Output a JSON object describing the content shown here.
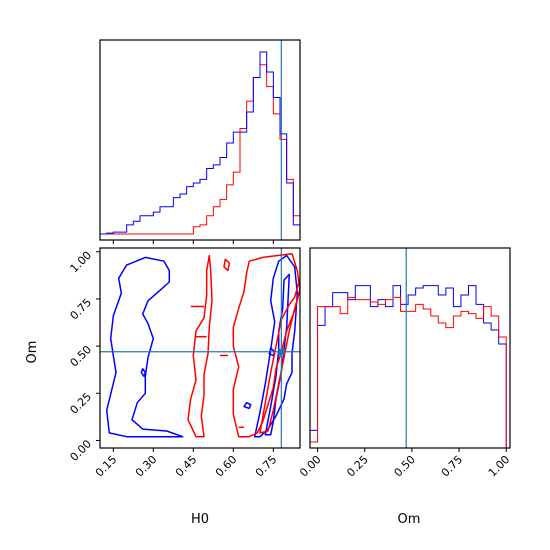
{
  "colors": {
    "series_a": "#0000ff",
    "series_b": "#ff0000",
    "truth": "#1f77b4"
  },
  "chart_data": {
    "type": "corner",
    "parameters": [
      "H0",
      "Om"
    ],
    "truth": {
      "H0": 0.78,
      "Om": 0.47
    },
    "axes": {
      "H0": {
        "label": "H0",
        "range": [
          0.1,
          0.85
        ],
        "ticks": [
          "0.15",
          "0.30",
          "0.45",
          "0.60",
          "0.75"
        ]
      },
      "Om": {
        "label": "Om",
        "range": [
          -0.04,
          1.02
        ],
        "ticks": [
          "0.00",
          "0.25",
          "0.50",
          "0.75",
          "1.00"
        ]
      }
    },
    "hist_h0": {
      "edges": [
        0.1,
        0.125,
        0.15,
        0.175,
        0.2,
        0.225,
        0.25,
        0.275,
        0.3,
        0.325,
        0.35,
        0.375,
        0.4,
        0.425,
        0.45,
        0.475,
        0.5,
        0.525,
        0.55,
        0.575,
        0.6,
        0.625,
        0.65,
        0.675,
        0.7,
        0.725,
        0.75,
        0.775,
        0.8,
        0.825,
        0.85
      ],
      "series_a": [
        0.0,
        0.005,
        0.01,
        0.01,
        0.05,
        0.07,
        0.1,
        0.1,
        0.12,
        0.15,
        0.15,
        0.2,
        0.22,
        0.26,
        0.28,
        0.3,
        0.36,
        0.38,
        0.42,
        0.5,
        0.56,
        0.56,
        0.67,
        0.86,
        1.0,
        0.89,
        0.75,
        0.55,
        0.28,
        0.05
      ],
      "series_b": [
        0,
        0,
        0,
        0,
        0,
        0,
        0,
        0,
        0,
        0,
        0,
        0,
        0,
        0,
        0.04,
        0.05,
        0.1,
        0.15,
        0.19,
        0.27,
        0.34,
        0.58,
        0.73,
        0.86,
        0.93,
        0.81,
        0.66,
        0.52,
        0.3,
        0.1
      ]
    },
    "hist_om": {
      "edges": [
        -0.04,
        0.0,
        0.04,
        0.08,
        0.12,
        0.16,
        0.2,
        0.24,
        0.28,
        0.32,
        0.36,
        0.4,
        0.44,
        0.48,
        0.52,
        0.56,
        0.6,
        0.64,
        0.68,
        0.72,
        0.76,
        0.8,
        0.84,
        0.88,
        0.92,
        0.96,
        1.0
      ],
      "series_a": [
        0.05,
        0.5,
        0.58,
        0.64,
        0.64,
        0.61,
        0.67,
        0.67,
        0.58,
        0.61,
        0.58,
        0.67,
        0.59,
        0.63,
        0.66,
        0.67,
        0.67,
        0.63,
        0.66,
        0.58,
        0.63,
        0.67,
        0.59,
        0.51,
        0.48,
        0.42
      ],
      "series_b": [
        0,
        0.58,
        0.58,
        0.58,
        0.55,
        0.62,
        0.61,
        0.61,
        0.6,
        0.59,
        0.61,
        0.62,
        0.56,
        0.56,
        0.59,
        0.57,
        0.54,
        0.51,
        0.49,
        0.54,
        0.56,
        0.55,
        0.53,
        0.58,
        0.54,
        0.45
      ]
    },
    "contours_2d": {
      "series_a": [
        {
          "closed": true,
          "points": [
            [
              0.135,
              0.04
            ],
            [
              0.125,
              0.16
            ],
            [
              0.16,
              0.36
            ],
            [
              0.14,
              0.54
            ],
            [
              0.15,
              0.66
            ],
            [
              0.18,
              0.78
            ],
            [
              0.17,
              0.86
            ],
            [
              0.2,
              0.93
            ],
            [
              0.27,
              0.97
            ],
            [
              0.34,
              0.95
            ],
            [
              0.36,
              0.9
            ],
            [
              0.36,
              0.84
            ],
            [
              0.32,
              0.79
            ],
            [
              0.28,
              0.74
            ],
            [
              0.26,
              0.67
            ],
            [
              0.28,
              0.62
            ],
            [
              0.3,
              0.54
            ],
            [
              0.28,
              0.44
            ],
            [
              0.27,
              0.34
            ],
            [
              0.27,
              0.25
            ],
            [
              0.24,
              0.2
            ],
            [
              0.22,
              0.11
            ],
            [
              0.26,
              0.06
            ],
            [
              0.35,
              0.05
            ],
            [
              0.41,
              0.02
            ],
            [
              0.33,
              0.02
            ],
            [
              0.2,
              0.02
            ]
          ]
        },
        {
          "closed": true,
          "points": [
            [
              0.68,
              0.02
            ],
            [
              0.7,
              0.15
            ],
            [
              0.72,
              0.3
            ],
            [
              0.74,
              0.48
            ],
            [
              0.755,
              0.63
            ],
            [
              0.74,
              0.74
            ],
            [
              0.75,
              0.86
            ],
            [
              0.77,
              0.95
            ],
            [
              0.8,
              0.98
            ],
            [
              0.83,
              0.92
            ],
            [
              0.84,
              0.78
            ],
            [
              0.83,
              0.58
            ],
            [
              0.82,
              0.46
            ],
            [
              0.82,
              0.36
            ],
            [
              0.8,
              0.3
            ],
            [
              0.79,
              0.22
            ],
            [
              0.76,
              0.13
            ],
            [
              0.73,
              0.06
            ],
            [
              0.7,
              0.02
            ]
          ]
        },
        {
          "closed": true,
          "points": [
            [
              0.72,
              0.03
            ],
            [
              0.74,
              0.18
            ],
            [
              0.76,
              0.34
            ],
            [
              0.77,
              0.48
            ],
            [
              0.77,
              0.58
            ],
            [
              0.785,
              0.7
            ],
            [
              0.79,
              0.85
            ],
            [
              0.81,
              0.88
            ],
            [
              0.805,
              0.74
            ],
            [
              0.8,
              0.6
            ],
            [
              0.79,
              0.48
            ],
            [
              0.78,
              0.36
            ],
            [
              0.76,
              0.22
            ],
            [
              0.75,
              0.1
            ],
            [
              0.74,
              0.03
            ]
          ]
        },
        {
          "closed": true,
          "points": [
            [
              0.26,
              0.38
            ],
            [
              0.255,
              0.36
            ],
            [
              0.265,
              0.34
            ],
            [
              0.27,
              0.36
            ]
          ]
        },
        {
          "closed": true,
          "points": [
            [
              0.65,
              0.2
            ],
            [
              0.64,
              0.18
            ],
            [
              0.66,
              0.17
            ],
            [
              0.665,
              0.19
            ]
          ]
        },
        {
          "closed": true,
          "points": [
            [
              0.74,
              0.49
            ],
            [
              0.735,
              0.46
            ],
            [
              0.75,
              0.45
            ],
            [
              0.755,
              0.47
            ]
          ]
        }
      ],
      "series_b": [
        {
          "closed": true,
          "points": [
            [
              0.46,
              0.02
            ],
            [
              0.43,
              0.11
            ],
            [
              0.44,
              0.22
            ],
            [
              0.46,
              0.32
            ],
            [
              0.45,
              0.45
            ],
            [
              0.46,
              0.58
            ],
            [
              0.49,
              0.65
            ],
            [
              0.5,
              0.77
            ],
            [
              0.5,
              0.9
            ],
            [
              0.51,
              0.98
            ],
            [
              0.515,
              0.9
            ],
            [
              0.52,
              0.74
            ],
            [
              0.51,
              0.6
            ],
            [
              0.505,
              0.46
            ],
            [
              0.49,
              0.35
            ],
            [
              0.49,
              0.24
            ],
            [
              0.48,
              0.13
            ],
            [
              0.49,
              0.02
            ]
          ]
        },
        {
          "closed": true,
          "points": [
            [
              0.62,
              0.02
            ],
            [
              0.6,
              0.14
            ],
            [
              0.6,
              0.27
            ],
            [
              0.62,
              0.39
            ],
            [
              0.6,
              0.5
            ],
            [
              0.6,
              0.6
            ],
            [
              0.62,
              0.7
            ],
            [
              0.64,
              0.79
            ],
            [
              0.65,
              0.89
            ],
            [
              0.66,
              0.95
            ],
            [
              0.71,
              0.97
            ],
            [
              0.82,
              0.99
            ],
            [
              0.84,
              0.9
            ],
            [
              0.85,
              0.8
            ],
            [
              0.83,
              0.69
            ],
            [
              0.8,
              0.58
            ],
            [
              0.78,
              0.47
            ],
            [
              0.76,
              0.38
            ],
            [
              0.75,
              0.28
            ],
            [
              0.73,
              0.19
            ],
            [
              0.71,
              0.1
            ],
            [
              0.69,
              0.04
            ],
            [
              0.66,
              0.02
            ]
          ]
        },
        {
          "closed": true,
          "points": [
            [
              0.7,
              0.04
            ],
            [
              0.72,
              0.2
            ],
            [
              0.74,
              0.36
            ],
            [
              0.76,
              0.5
            ],
            [
              0.78,
              0.64
            ],
            [
              0.81,
              0.72
            ],
            [
              0.83,
              0.76
            ],
            [
              0.85,
              0.86
            ],
            [
              0.85,
              0.8
            ],
            [
              0.83,
              0.7
            ],
            [
              0.81,
              0.58
            ],
            [
              0.79,
              0.44
            ],
            [
              0.77,
              0.3
            ],
            [
              0.75,
              0.16
            ],
            [
              0.73,
              0.05
            ]
          ]
        },
        {
          "closed": true,
          "points": [
            [
              0.57,
              0.96
            ],
            [
              0.565,
              0.92
            ],
            [
              0.58,
              0.9
            ],
            [
              0.585,
              0.94
            ]
          ]
        },
        {
          "closed": false,
          "points": [
            [
              0.44,
              0.71
            ],
            [
              0.49,
              0.71
            ]
          ]
        },
        {
          "closed": false,
          "points": [
            [
              0.46,
              0.55
            ],
            [
              0.5,
              0.55
            ]
          ]
        },
        {
          "closed": false,
          "points": [
            [
              0.55,
              0.45
            ],
            [
              0.58,
              0.45
            ]
          ]
        },
        {
          "closed": false,
          "points": [
            [
              0.62,
              0.07
            ],
            [
              0.64,
              0.07
            ]
          ]
        }
      ]
    }
  }
}
